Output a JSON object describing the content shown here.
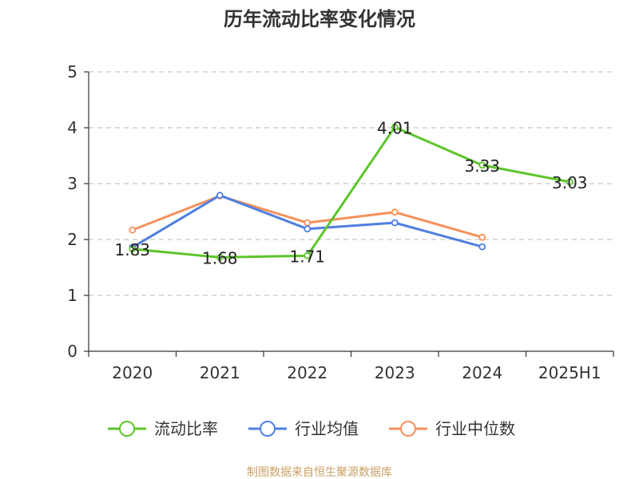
{
  "chart_data": {
    "type": "line",
    "title": "历年流动比率变化情况",
    "xlabel": "",
    "ylabel": "",
    "categories": [
      "2020",
      "2021",
      "2022",
      "2023",
      "2024",
      "2025H1"
    ],
    "ylim": [
      0,
      5
    ],
    "yticks": [
      0,
      1,
      2,
      3,
      4,
      5
    ],
    "grid": true,
    "legend_position": "bottom",
    "series": [
      {
        "name": "流动比率",
        "color": "#5cc52a",
        "values": [
          1.83,
          1.68,
          1.71,
          4.01,
          3.33,
          3.03
        ],
        "labels": [
          "1.83",
          "1.68",
          "1.71",
          "4.01",
          "3.33",
          "3.03"
        ]
      },
      {
        "name": "行业均值",
        "color": "#4f7fe0",
        "values": [
          1.86,
          2.79,
          2.19,
          2.3,
          1.87,
          null
        ]
      },
      {
        "name": "行业中位数",
        "color": "#f5915c",
        "values": [
          2.17,
          2.78,
          2.3,
          2.49,
          2.04,
          null
        ]
      }
    ]
  },
  "source": "制图数据来自恒生聚源数据库"
}
